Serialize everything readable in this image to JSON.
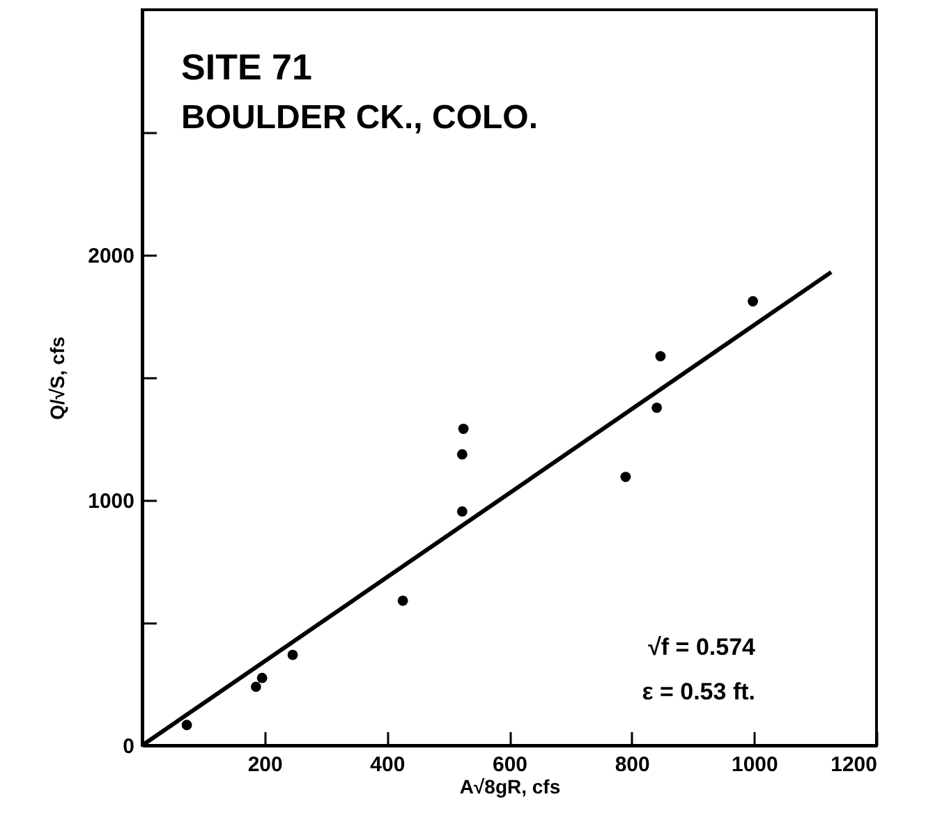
{
  "chart_data": {
    "type": "scatter",
    "xlabel": "A√8gR, cfs",
    "ylabel": "Q/√S, cfs",
    "annotations": [
      "SITE 71",
      "BOULDER CK., COLO.",
      "√f = 0.574",
      "ε = 0.53 ft."
    ],
    "xlim": [
      0,
      1200
    ],
    "ylim": [
      0,
      3000
    ],
    "xticks": [
      200,
      400,
      600,
      800,
      1000,
      1200
    ],
    "yticks": [
      0,
      {
        "value": 500,
        "label": null
      },
      1000,
      {
        "value": 1500,
        "label": null
      },
      2000,
      {
        "value": 2500,
        "label": null
      }
    ],
    "grid": false,
    "series": [
      {
        "type": "scatter",
        "marker": "circle",
        "color": "#000000",
        "x": [
          73,
          186,
          196,
          246,
          426,
          525,
          523,
          523,
          790,
          841,
          847,
          998
        ],
        "values": [
          83,
          239,
          275,
          369,
          590,
          1291,
          1187,
          954,
          1095,
          1377,
          1587,
          1811
        ]
      },
      {
        "type": "line",
        "color": "#000000",
        "x": [
          0,
          1126
        ],
        "values": [
          0,
          1930
        ]
      }
    ]
  }
}
